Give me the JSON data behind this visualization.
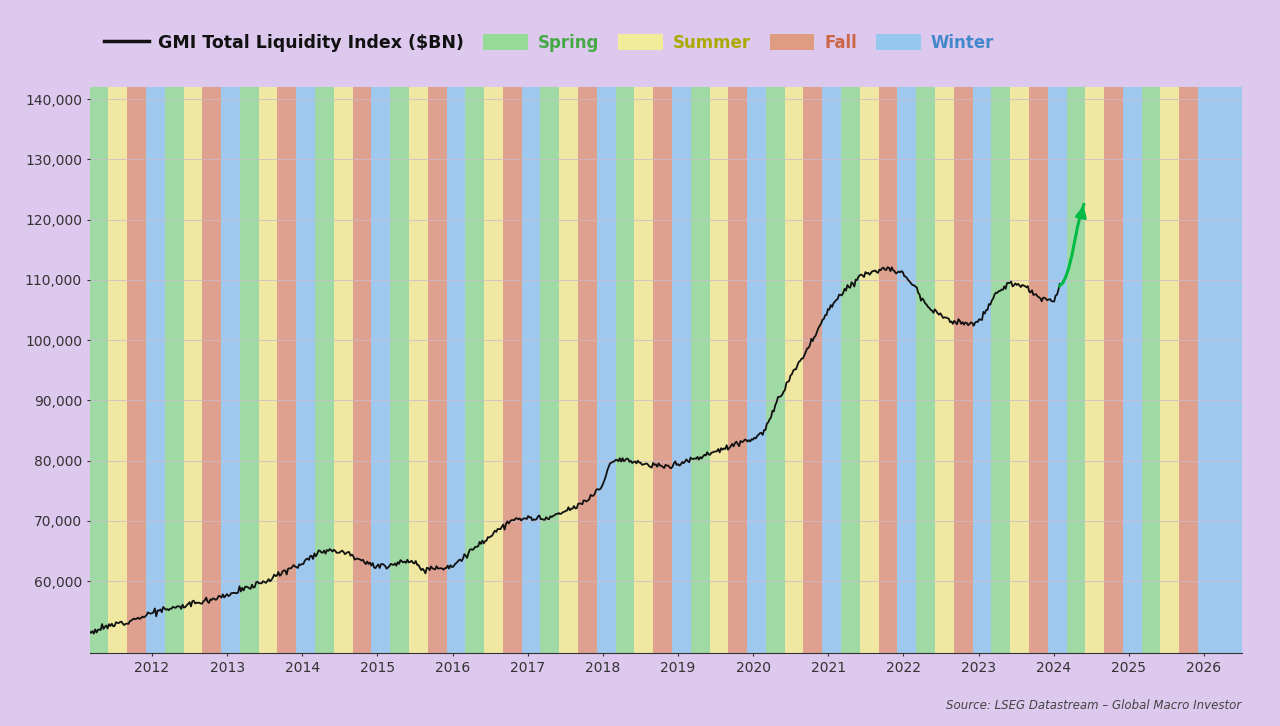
{
  "title": "GMI Total Liquidity Index ($BN)",
  "source_text": "Source: LSEG Datastream – Global Macro Investor",
  "background_color": "#ddc8ee",
  "season_colors": {
    "Spring": "#90de90",
    "Summer": "#f5f090",
    "Fall": "#e09878",
    "Winter": "#90c8f0"
  },
  "season_alpha": 0.8,
  "seasons_sequence": [
    [
      "Spring",
      2011.17,
      2011.42
    ],
    [
      "Summer",
      2011.42,
      2011.67
    ],
    [
      "Fall",
      2011.67,
      2011.92
    ],
    [
      "Winter",
      2011.92,
      2012.17
    ],
    [
      "Spring",
      2012.17,
      2012.42
    ],
    [
      "Summer",
      2012.42,
      2012.67
    ],
    [
      "Fall",
      2012.67,
      2012.92
    ],
    [
      "Winter",
      2012.92,
      2013.17
    ],
    [
      "Spring",
      2013.17,
      2013.42
    ],
    [
      "Summer",
      2013.42,
      2013.67
    ],
    [
      "Fall",
      2013.67,
      2013.92
    ],
    [
      "Winter",
      2013.92,
      2014.17
    ],
    [
      "Spring",
      2014.17,
      2014.42
    ],
    [
      "Summer",
      2014.42,
      2014.67
    ],
    [
      "Fall",
      2014.67,
      2014.92
    ],
    [
      "Winter",
      2014.92,
      2015.17
    ],
    [
      "Spring",
      2015.17,
      2015.42
    ],
    [
      "Summer",
      2015.42,
      2015.67
    ],
    [
      "Fall",
      2015.67,
      2015.92
    ],
    [
      "Winter",
      2015.92,
      2016.17
    ],
    [
      "Spring",
      2016.17,
      2016.42
    ],
    [
      "Summer",
      2016.42,
      2016.67
    ],
    [
      "Fall",
      2016.67,
      2016.92
    ],
    [
      "Winter",
      2016.92,
      2017.17
    ],
    [
      "Spring",
      2017.17,
      2017.42
    ],
    [
      "Summer",
      2017.42,
      2017.67
    ],
    [
      "Fall",
      2017.67,
      2017.92
    ],
    [
      "Winter",
      2017.92,
      2018.17
    ],
    [
      "Spring",
      2018.17,
      2018.42
    ],
    [
      "Summer",
      2018.42,
      2018.67
    ],
    [
      "Fall",
      2018.67,
      2018.92
    ],
    [
      "Winter",
      2018.92,
      2019.17
    ],
    [
      "Spring",
      2019.17,
      2019.42
    ],
    [
      "Summer",
      2019.42,
      2019.67
    ],
    [
      "Fall",
      2019.67,
      2019.92
    ],
    [
      "Winter",
      2019.92,
      2020.17
    ],
    [
      "Spring",
      2020.17,
      2020.42
    ],
    [
      "Summer",
      2020.42,
      2020.67
    ],
    [
      "Fall",
      2020.67,
      2020.92
    ],
    [
      "Winter",
      2020.92,
      2021.17
    ],
    [
      "Spring",
      2021.17,
      2021.42
    ],
    [
      "Summer",
      2021.42,
      2021.67
    ],
    [
      "Fall",
      2021.67,
      2021.92
    ],
    [
      "Winter",
      2021.92,
      2022.17
    ],
    [
      "Spring",
      2022.17,
      2022.42
    ],
    [
      "Summer",
      2022.42,
      2022.67
    ],
    [
      "Fall",
      2022.67,
      2022.92
    ],
    [
      "Winter",
      2022.92,
      2023.17
    ],
    [
      "Spring",
      2023.17,
      2023.42
    ],
    [
      "Summer",
      2023.42,
      2023.67
    ],
    [
      "Fall",
      2023.67,
      2023.92
    ],
    [
      "Winter",
      2023.92,
      2024.17
    ],
    [
      "Spring",
      2024.17,
      2024.42
    ],
    [
      "Summer",
      2024.42,
      2024.67
    ],
    [
      "Fall",
      2024.67,
      2024.92
    ],
    [
      "Winter",
      2024.92,
      2025.17
    ],
    [
      "Spring",
      2025.17,
      2025.42
    ],
    [
      "Summer",
      2025.42,
      2025.67
    ],
    [
      "Fall",
      2025.67,
      2025.92
    ],
    [
      "Winter",
      2025.92,
      2026.5
    ]
  ],
  "x_min": 2011.17,
  "x_max": 2026.5,
  "y_min": 48000,
  "y_max": 142000,
  "yticks": [
    60000,
    70000,
    80000,
    90000,
    100000,
    110000,
    120000,
    130000,
    140000
  ],
  "xticks": [
    2012,
    2013,
    2014,
    2015,
    2016,
    2017,
    2018,
    2019,
    2020,
    2021,
    2022,
    2023,
    2024,
    2025,
    2026
  ],
  "main_line_color": "#111111",
  "green_line_color": "#00bb44",
  "arrow_color": "#00bb44",
  "season_label_colors": {
    "Spring": "#44aa44",
    "Summer": "#aaaa00",
    "Fall": "#cc6644",
    "Winter": "#4488cc"
  }
}
